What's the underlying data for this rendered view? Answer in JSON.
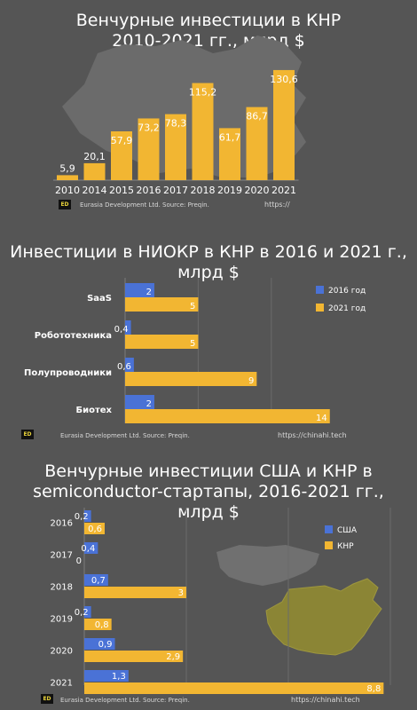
{
  "chart_data": [
    {
      "type": "bar",
      "title": "Венчурные инвестиции в КНР 2010-2021 гг., млрд $",
      "title_lines": [
        "Венчурные инвестиции в КНР",
        "2010-2021 гг., млрд $"
      ],
      "categories": [
        "2010",
        "2014",
        "2015",
        "2016",
        "2017",
        "2018",
        "2019",
        "2020",
        "2021"
      ],
      "values": [
        5.9,
        20.1,
        57.9,
        73.2,
        78.3,
        115.2,
        61.7,
        86.7,
        130.6
      ],
      "value_labels": [
        "5,9",
        "20,1",
        "57,9",
        "73,2",
        "78,3",
        "115,2",
        "61,7",
        "86,7",
        "130,6"
      ],
      "ylim": [
        0,
        140
      ],
      "color": "#f2b632",
      "grid": false,
      "footer": {
        "credit": "Eurasia Development Ltd.  Source: Preqin.",
        "url": "https://"
      }
    },
    {
      "type": "bar",
      "orientation": "horizontal",
      "title": "Инвестиции в НИОКР в КНР в 2016 и 2021 г., млрд $",
      "title_lines": [
        "Инвестиции в НИОКР в КНР в 2016 и 2021 г.,",
        "млрд $"
      ],
      "categories": [
        "SaaS",
        "Робототехника",
        "Полупроводники",
        "Биотех"
      ],
      "series": [
        {
          "name": "2016 год",
          "values": [
            2,
            0.4,
            0.6,
            2
          ],
          "labels": [
            "2",
            "0,4",
            "0,6",
            "2"
          ],
          "color": "#4a72d6"
        },
        {
          "name": "2021 год",
          "values": [
            5,
            5,
            9,
            14
          ],
          "labels": [
            "5",
            "5",
            "9",
            "14"
          ],
          "color": "#f2b632"
        }
      ],
      "xlim": [
        0,
        14.5
      ],
      "grid": true,
      "legend": "top-right",
      "footer": {
        "credit": "Eurasia Development Ltd.  Source: Preqin.",
        "url": "https://chinahi.tech"
      }
    },
    {
      "type": "bar",
      "orientation": "horizontal",
      "title": "Венчурные инвестиции США и КНР в semiconductor-стартапы, 2016-2021 гг., млрд $",
      "title_lines": [
        "Венчурные инвестиции США и КНР в",
        "semiconductor-стартапы, 2016-2021 гг.,",
        "млрд $"
      ],
      "categories": [
        "2016",
        "2017",
        "2018",
        "2019",
        "2020",
        "2021"
      ],
      "series": [
        {
          "name": "США",
          "values": [
            0.2,
            0.4,
            0.7,
            0.2,
            0.9,
            1.3
          ],
          "labels": [
            "0,2",
            "0,4",
            "0,7",
            "0,2",
            "0,9",
            "1,3"
          ],
          "color": "#4a72d6"
        },
        {
          "name": "КНР",
          "values": [
            0.6,
            0,
            3,
            0.8,
            2.9,
            8.8
          ],
          "labels": [
            "0,6",
            "0",
            "3",
            "0,8",
            "2,9",
            "8,8"
          ],
          "color": "#f2b632"
        }
      ],
      "xlim": [
        0,
        9
      ],
      "grid": true,
      "legend": "top-right",
      "footer": {
        "credit": "Eurasia Development Ltd.  Source: Preqin.",
        "url": "https://chinahi.tech"
      }
    }
  ],
  "logo": {
    "text": "ED"
  }
}
